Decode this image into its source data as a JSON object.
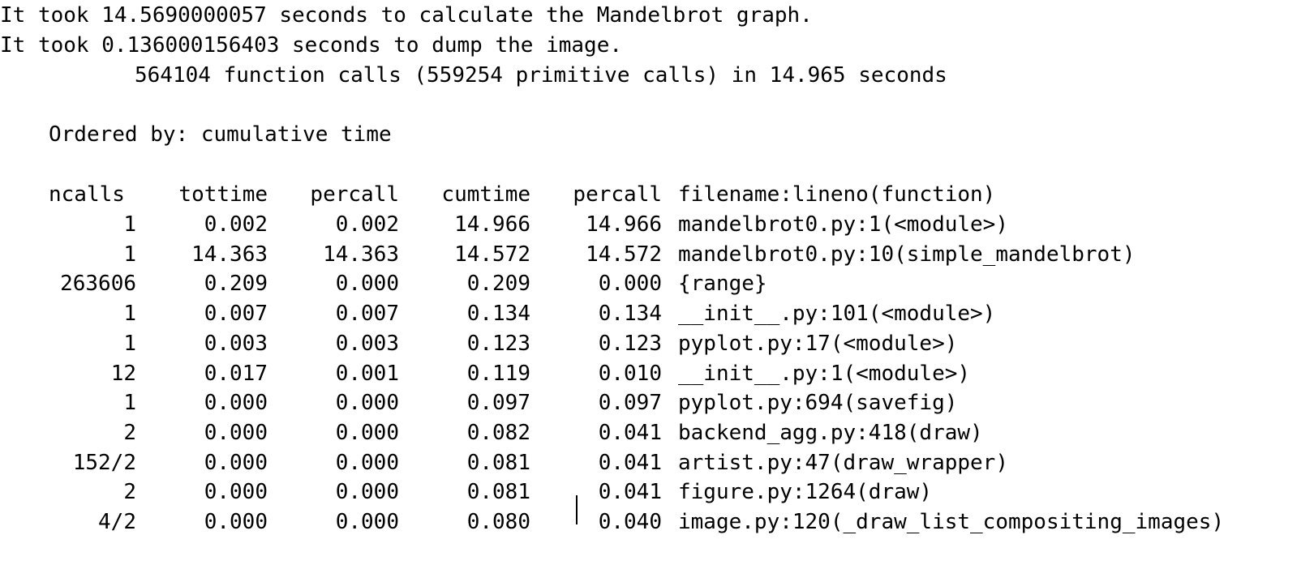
{
  "console": {
    "messages": [
      "It took 14.5690000057 seconds to calculate the Mandelbrot graph.",
      "It took 0.136000156403 seconds to dump the image."
    ],
    "summary": "564104 function calls (559254 primitive calls) in 14.965 seconds",
    "ordered_by": "Ordered by: cumulative time"
  },
  "table": {
    "headers": [
      "ncalls",
      "tottime",
      "percall",
      "cumtime",
      "percall",
      "filename:lineno(function)"
    ],
    "rows": [
      [
        "1",
        "0.002",
        "0.002",
        "14.966",
        "14.966",
        "mandelbrot0.py:1(<module>)"
      ],
      [
        "1",
        "14.363",
        "14.363",
        "14.572",
        "14.572",
        "mandelbrot0.py:10(simple_mandelbrot)"
      ],
      [
        "263606",
        "0.209",
        "0.000",
        "0.209",
        "0.000",
        "{range}"
      ],
      [
        "1",
        "0.007",
        "0.007",
        "0.134",
        "0.134",
        "__init__.py:101(<module>)"
      ],
      [
        "1",
        "0.003",
        "0.003",
        "0.123",
        "0.123",
        "pyplot.py:17(<module>)"
      ],
      [
        "12",
        "0.017",
        "0.001",
        "0.119",
        "0.010",
        "__init__.py:1(<module>)"
      ],
      [
        "1",
        "0.000",
        "0.000",
        "0.097",
        "0.097",
        "pyplot.py:694(savefig)"
      ],
      [
        "2",
        "0.000",
        "0.000",
        "0.082",
        "0.041",
        "backend_agg.py:418(draw)"
      ],
      [
        "152/2",
        "0.000",
        "0.000",
        "0.081",
        "0.041",
        "artist.py:47(draw_wrapper)"
      ],
      [
        "2",
        "0.000",
        "0.000",
        "0.081",
        "0.041",
        "figure.py:1264(draw)"
      ],
      [
        "4/2",
        "0.000",
        "0.000",
        "0.080",
        "0.040",
        "image.py:120(_draw_list_compositing_images)"
      ]
    ]
  }
}
